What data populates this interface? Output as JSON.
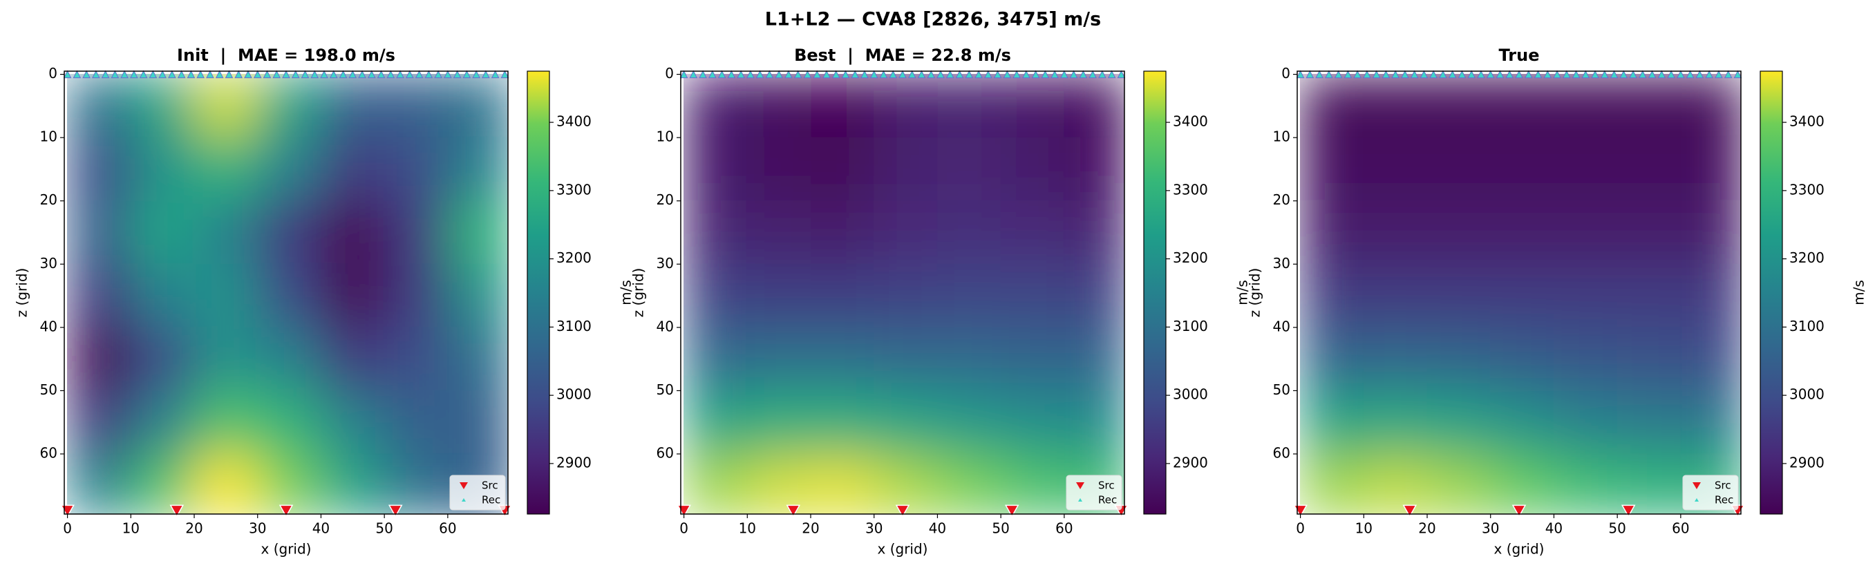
{
  "title": "L1+L2 — CVA8 [2826, 3475] m/s",
  "acquisition": {
    "legend": [
      "Src",
      "Rec"
    ],
    "legend_loc": "lower right",
    "source_color": "#e8141c",
    "receiver_color": "#3fd6c8",
    "sources": {
      "x": [
        0,
        17.25,
        34.5,
        51.75,
        69
      ],
      "z": 69
    },
    "receivers": {
      "x": [
        0,
        1.5,
        3,
        4.5,
        6,
        7.5,
        9,
        10.5,
        12,
        13.5,
        15,
        16.5,
        18,
        19.5,
        21,
        22.5,
        24,
        25.5,
        27,
        28.5,
        30,
        31.5,
        33,
        34.5,
        36,
        37.5,
        39,
        40.5,
        42,
        43.5,
        45,
        46.5,
        48,
        49.5,
        51,
        52.5,
        54,
        55.5,
        57,
        58.5,
        60,
        61.5,
        63,
        64.5,
        66,
        67.5,
        69
      ],
      "z": 0
    }
  },
  "chart_data": [
    {
      "type": "heatmap",
      "title": "Init  |  MAE = 198.0 m/s",
      "title_color": "#d62728",
      "xlabel": "x (grid)",
      "ylabel": "z (grid)",
      "colormap": "viridis",
      "xlim": [
        -0.5,
        69.5
      ],
      "ylim": [
        69.5,
        -0.5
      ],
      "xticks": [
        0,
        10,
        20,
        30,
        40,
        50,
        60
      ],
      "yticks": [
        0,
        10,
        20,
        30,
        40,
        50,
        60
      ],
      "clim": [
        2826,
        3475
      ],
      "cticks": [
        2900,
        3000,
        3100,
        3200,
        3300,
        3400
      ],
      "colorbar_label": "m/s",
      "x": [
        5,
        15,
        25,
        35,
        45,
        55,
        65
      ],
      "z": [
        5,
        15,
        25,
        35,
        45,
        55,
        65
      ],
      "values": [
        [
          3100,
          3250,
          3450,
          3250,
          3050,
          3050,
          3100
        ],
        [
          3000,
          3200,
          3300,
          3150,
          2950,
          3000,
          3150
        ],
        [
          3050,
          3250,
          3150,
          2950,
          2830,
          2950,
          3300
        ],
        [
          2950,
          3150,
          3200,
          3000,
          2830,
          2950,
          3200
        ],
        [
          2830,
          3000,
          3200,
          3150,
          2950,
          3000,
          3100
        ],
        [
          2950,
          3150,
          3350,
          3300,
          3150,
          3050,
          3050
        ],
        [
          3150,
          3350,
          3475,
          3400,
          3250,
          3100,
          3050
        ]
      ]
    },
    {
      "type": "heatmap",
      "title": "Best  |  MAE = 22.8 m/s",
      "title_color": "#2ca02c",
      "xlabel": "x (grid)",
      "ylabel": "z (grid)",
      "colormap": "viridis",
      "xlim": [
        -0.5,
        69.5
      ],
      "ylim": [
        69.5,
        -0.5
      ],
      "xticks": [
        0,
        10,
        20,
        30,
        40,
        50,
        60
      ],
      "yticks": [
        0,
        10,
        20,
        30,
        40,
        50,
        60
      ],
      "clim": [
        2826,
        3475
      ],
      "cticks": [
        2900,
        3000,
        3100,
        3200,
        3300,
        3400
      ],
      "colorbar_label": "m/s",
      "x": [
        5,
        15,
        25,
        35,
        45,
        55,
        65
      ],
      "z": [
        5,
        15,
        25,
        35,
        45,
        55,
        65
      ],
      "values": [
        [
          2880,
          2850,
          2830,
          2880,
          2890,
          2870,
          2850
        ],
        [
          2880,
          2850,
          2840,
          2890,
          2900,
          2880,
          2860
        ],
        [
          2900,
          2890,
          2880,
          2910,
          2920,
          2910,
          2900
        ],
        [
          2970,
          2960,
          2960,
          2970,
          2980,
          2980,
          2970
        ],
        [
          3080,
          3090,
          3090,
          3080,
          3080,
          3060,
          3060
        ],
        [
          3250,
          3280,
          3280,
          3250,
          3220,
          3190,
          3180
        ],
        [
          3420,
          3450,
          3460,
          3430,
          3400,
          3350,
          3330
        ]
      ]
    },
    {
      "type": "heatmap",
      "title": "True",
      "title_color": "#000000",
      "xlabel": "x (grid)",
      "ylabel": "z (grid)",
      "colormap": "viridis",
      "xlim": [
        -0.5,
        69.5
      ],
      "ylim": [
        69.5,
        -0.5
      ],
      "xticks": [
        0,
        10,
        20,
        30,
        40,
        50,
        60
      ],
      "yticks": [
        0,
        10,
        20,
        30,
        40,
        50,
        60
      ],
      "clim": [
        2826,
        3475
      ],
      "cticks": [
        2900,
        3000,
        3100,
        3200,
        3300,
        3400
      ],
      "colorbar_label": "m/s",
      "x": [
        5,
        15,
        25,
        35,
        45,
        55,
        65
      ],
      "z": [
        5,
        15,
        25,
        35,
        45,
        55,
        65
      ],
      "values": [
        [
          2840,
          2840,
          2840,
          2840,
          2840,
          2840,
          2840
        ],
        [
          2850,
          2850,
          2850,
          2850,
          2850,
          2850,
          2850
        ],
        [
          2880,
          2880,
          2880,
          2880,
          2880,
          2880,
          2880
        ],
        [
          2950,
          2950,
          2950,
          2950,
          2950,
          2950,
          2950
        ],
        [
          3060,
          3070,
          3060,
          3040,
          3020,
          3010,
          3000
        ],
        [
          3250,
          3260,
          3240,
          3200,
          3150,
          3130,
          3120
        ],
        [
          3420,
          3440,
          3420,
          3380,
          3330,
          3300,
          3290
        ]
      ]
    }
  ]
}
